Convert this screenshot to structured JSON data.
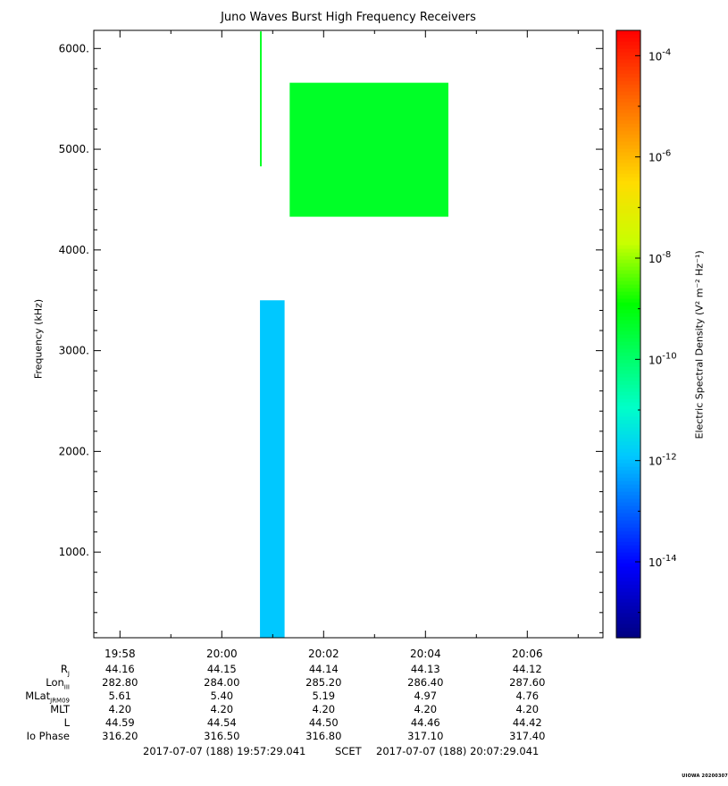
{
  "chart_data": {
    "type": "heatmap",
    "title": "Juno Waves Burst High Frequency Receivers",
    "ylabel": "Frequency (kHz)",
    "ylim": [
      150,
      6180
    ],
    "yticks": [
      1000,
      2000,
      3000,
      4000,
      5000,
      6000
    ],
    "ytick_labels": [
      "1000.",
      "2000.",
      "3000.",
      "4000.",
      "5000.",
      "6000."
    ],
    "xlim_minutes_after_1957": [
      0.486,
      10.486
    ],
    "xticks": [
      "19:58",
      "20:00",
      "20:02",
      "20:04",
      "20:06"
    ],
    "colorbar": {
      "label": "Electric Spectral Density (V² m⁻² Hz⁻¹)",
      "log_range": [
        -15.5,
        -3.5
      ],
      "tick_labels": [
        "10-4",
        "10-6",
        "10-8",
        "10-10",
        "10-12",
        "10-14"
      ],
      "tick_exponents": [
        -4,
        -6,
        -8,
        -10,
        -12,
        -14
      ]
    },
    "blocks": [
      {
        "t_start": "20:00:45",
        "t_end": "20:00:47",
        "f_low": 4830,
        "f_high": 6170,
        "log_density": -9.2
      },
      {
        "t_start": "20:00:45",
        "t_end": "20:01:14",
        "f_low": 150,
        "f_high": 3500,
        "log_density": -11.9
      },
      {
        "t_start": "20:01:20",
        "t_end": "20:04:27",
        "f_low": 4330,
        "f_high": 5660,
        "log_density": -9.3
      }
    ]
  },
  "ephemeris": {
    "rows": [
      {
        "label": "R",
        "sub": "J",
        "values": [
          "44.16",
          "44.15",
          "44.14",
          "44.13",
          "44.12"
        ]
      },
      {
        "label": "Lon",
        "sub": "III",
        "values": [
          "282.80",
          "284.00",
          "285.20",
          "286.40",
          "287.60"
        ]
      },
      {
        "label": "MLat",
        "sub": "JRM09",
        "values": [
          "5.61",
          "5.40",
          "5.19",
          "4.97",
          "4.76"
        ]
      },
      {
        "label": "MLT",
        "sub": "",
        "values": [
          "4.20",
          "4.20",
          "4.20",
          "4.20",
          "4.20"
        ]
      },
      {
        "label": "L",
        "sub": "",
        "values": [
          "44.59",
          "44.54",
          "44.50",
          "44.46",
          "44.42"
        ]
      },
      {
        "label": "Io Phase",
        "sub": "",
        "values": [
          "316.20",
          "316.50",
          "316.80",
          "317.10",
          "317.40"
        ]
      }
    ]
  },
  "footer": {
    "start": "2017-07-07 (188) 19:57:29.041",
    "scet": "SCET",
    "end": "2017-07-07 (188) 20:07:29.041",
    "credit": "UIOWA 20200307"
  }
}
